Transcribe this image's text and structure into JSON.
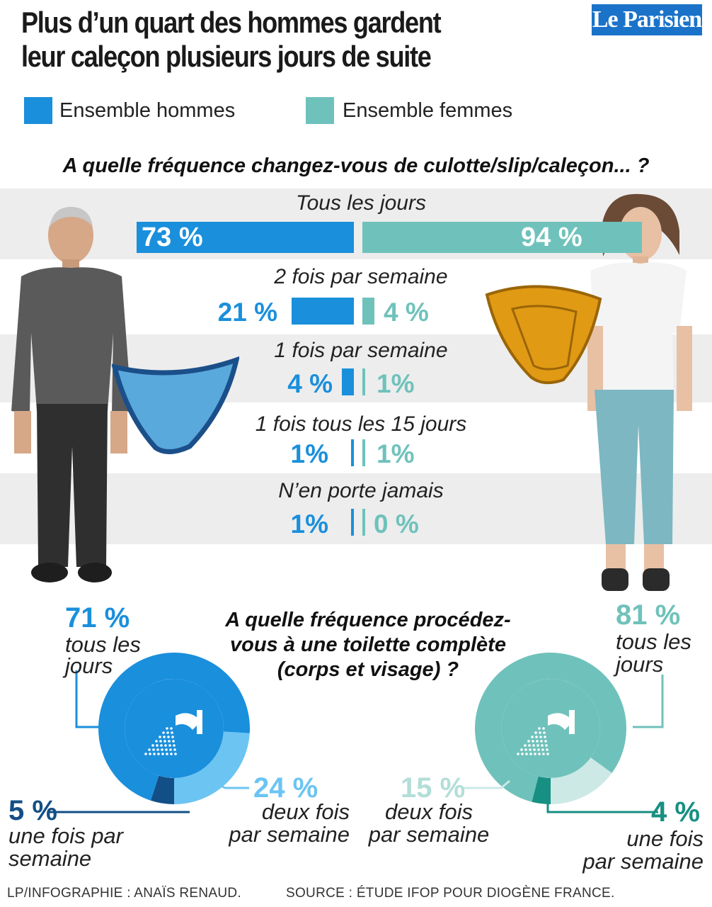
{
  "title_line1": "Plus d’un quart des hommes gardent",
  "title_line2": "leur caleçon plusieurs jours de suite",
  "logo": "Le Parisien",
  "legend": [
    {
      "label": "Ensemble hommes",
      "color": "#1a8fdc"
    },
    {
      "label": "Ensemble femmes",
      "color": "#6fc2bb"
    }
  ],
  "colors": {
    "hommes": "#1a8fdc",
    "femmes": "#6fc2bb",
    "hommes_light": "#6cc4f2",
    "hommes_dark": "#124f86",
    "femmes_light": "#cce9e5",
    "femmes_dark": "#178f83",
    "band": "#ededed"
  },
  "chart_data": [
    {
      "type": "bar",
      "title": "A quelle fréquence changez-vous de culotte/slip/caleçon... ?",
      "categories": [
        "Tous les jours",
        "2 fois par semaine",
        "1 fois par semaine",
        "1 fois tous les 15 jours",
        "N’en porte jamais"
      ],
      "series": [
        {
          "name": "Ensemble hommes",
          "values": [
            73,
            21,
            4,
            1,
            1
          ],
          "labels": [
            "73 %",
            "21 %",
            "4 %",
            "1%",
            "1%"
          ]
        },
        {
          "name": "Ensemble femmes",
          "values": [
            94,
            4,
            1,
            1,
            0
          ],
          "labels": [
            "94 %",
            "4 %",
            "1%",
            "1%",
            "0 %"
          ]
        }
      ]
    },
    {
      "type": "pie",
      "title": "A quelle fréquence procédez-vous à une toilette complète (corps et visage) ?",
      "title_lines": [
        "A quelle fréquence procédez-",
        "vous à une toilette complète",
        "(corps et visage) ?"
      ],
      "series": [
        {
          "name": "Ensemble hommes",
          "slices": [
            {
              "value": 71,
              "label": "71 %",
              "text": [
                "tous les",
                "jours"
              ]
            },
            {
              "value": 24,
              "label": "24 %",
              "text": [
                "deux fois",
                "par semaine"
              ]
            },
            {
              "value": 5,
              "label": "5 %",
              "text": [
                "une fois par",
                "semaine"
              ]
            }
          ]
        },
        {
          "name": "Ensemble femmes",
          "slices": [
            {
              "value": 81,
              "label": "81 %",
              "text": [
                "tous les",
                "jours"
              ]
            },
            {
              "value": 15,
              "label": "15 %",
              "text": [
                "deux fois",
                "par semaine"
              ]
            },
            {
              "value": 4,
              "label": "4 %",
              "text": [
                "une fois",
                "par semaine"
              ]
            }
          ]
        }
      ]
    }
  ],
  "credit": "LP/INFOGRAPHIE : ANAÏS RENAUD.",
  "source": "SOURCE : ÉTUDE IFOP POUR DIOGÈNE FRANCE."
}
